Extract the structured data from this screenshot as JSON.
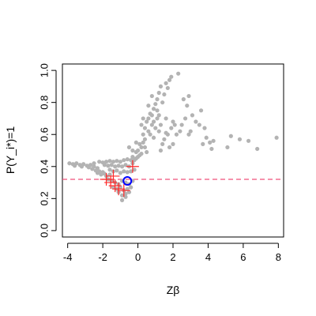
{
  "chart_data": {
    "type": "scatter",
    "title": "",
    "xlabel": "Zβ",
    "ylabel": "P(Y_i*)=1",
    "xlim": [
      -4.3,
      8.3
    ],
    "ylim": [
      -0.04,
      1.04
    ],
    "grid": false,
    "legend": "none",
    "x_ticks": [
      -4,
      -2,
      0,
      2,
      4,
      6,
      8
    ],
    "x_tick_labels": [
      "-4",
      "-2",
      "0",
      "2",
      "4",
      "6",
      "8"
    ],
    "y_ticks": [
      0.0,
      0.2,
      0.4,
      0.6,
      0.8,
      1.0
    ],
    "y_tick_labels": [
      "0.0",
      "0.2",
      "0.4",
      "0.6",
      "0.8",
      "1.0"
    ],
    "reference_line": {
      "y": 0.32,
      "style": "dashed",
      "color": "#f0507a"
    },
    "series": [
      {
        "marker": "filled-circle",
        "color": "#b3b3b3",
        "points": [
          [
            -3.9,
            0.42
          ],
          [
            -3.7,
            0.415
          ],
          [
            -3.5,
            0.42
          ],
          [
            -3.3,
            0.41
          ],
          [
            -3.1,
            0.415
          ],
          [
            -2.9,
            0.405
          ],
          [
            -2.7,
            0.41
          ],
          [
            -3.6,
            0.405
          ],
          [
            -3.2,
            0.4
          ],
          [
            -2.8,
            0.395
          ],
          [
            -2.5,
            0.4
          ],
          [
            -2.3,
            0.39
          ],
          [
            -2.6,
            0.385
          ],
          [
            -2.4,
            0.375
          ],
          [
            -2.2,
            0.37
          ],
          [
            -2.0,
            0.365
          ],
          [
            -1.9,
            0.355
          ],
          [
            -2.1,
            0.35
          ],
          [
            -2.3,
            0.36
          ],
          [
            -1.8,
            0.34
          ],
          [
            -1.6,
            0.35
          ],
          [
            -2.5,
            0.42
          ],
          [
            -2.2,
            0.43
          ],
          [
            -2.0,
            0.425
          ],
          [
            -1.8,
            0.43
          ],
          [
            -1.6,
            0.435
          ],
          [
            -1.4,
            0.43
          ],
          [
            -1.2,
            0.435
          ],
          [
            -1.0,
            0.43
          ],
          [
            -0.8,
            0.44
          ],
          [
            -0.6,
            0.445
          ],
          [
            -0.4,
            0.44
          ],
          [
            -1.9,
            0.41
          ],
          [
            -1.7,
            0.405
          ],
          [
            -1.5,
            0.41
          ],
          [
            -1.3,
            0.4
          ],
          [
            -1.1,
            0.405
          ],
          [
            -0.9,
            0.4
          ],
          [
            -0.7,
            0.41
          ],
          [
            -0.5,
            0.4
          ],
          [
            -1.6,
            0.38
          ],
          [
            -1.4,
            0.37
          ],
          [
            -1.2,
            0.375
          ],
          [
            -1.0,
            0.36
          ],
          [
            -0.8,
            0.37
          ],
          [
            -0.6,
            0.365
          ],
          [
            -0.4,
            0.37
          ],
          [
            -0.2,
            0.38
          ],
          [
            -1.7,
            0.32
          ],
          [
            -1.5,
            0.31
          ],
          [
            -1.3,
            0.3
          ],
          [
            -1.1,
            0.29
          ],
          [
            -0.9,
            0.31
          ],
          [
            -0.7,
            0.3
          ],
          [
            -0.5,
            0.29
          ],
          [
            -0.3,
            0.31
          ],
          [
            -1.4,
            0.27
          ],
          [
            -1.2,
            0.26
          ],
          [
            -1.0,
            0.27
          ],
          [
            -0.8,
            0.25
          ],
          [
            -0.6,
            0.26
          ],
          [
            -0.4,
            0.27
          ],
          [
            -1.1,
            0.24
          ],
          [
            -0.9,
            0.22
          ],
          [
            -0.7,
            0.23
          ],
          [
            -0.5,
            0.24
          ],
          [
            -0.9,
            0.19
          ],
          [
            -0.7,
            0.21
          ],
          [
            -0.3,
            0.42
          ],
          [
            -0.2,
            0.44
          ],
          [
            -0.1,
            0.45
          ],
          [
            0.0,
            0.46
          ],
          [
            0.1,
            0.47
          ],
          [
            0.2,
            0.48
          ],
          [
            -0.1,
            0.49
          ],
          [
            -0.3,
            0.46
          ],
          [
            0.0,
            0.5
          ],
          [
            0.2,
            0.52
          ],
          [
            0.1,
            0.54
          ],
          [
            -0.1,
            0.55
          ],
          [
            0.3,
            0.55
          ],
          [
            0.4,
            0.57
          ],
          [
            -0.5,
            0.52
          ],
          [
            -0.3,
            0.5
          ],
          [
            0.4,
            0.52
          ],
          [
            0.5,
            0.49
          ],
          [
            0.3,
            0.6
          ],
          [
            0.4,
            0.64
          ],
          [
            0.2,
            0.66
          ],
          [
            0.5,
            0.68
          ],
          [
            0.6,
            0.7
          ],
          [
            0.7,
            0.73
          ],
          [
            0.8,
            0.72
          ],
          [
            0.9,
            0.76
          ],
          [
            1.0,
            0.79
          ],
          [
            1.1,
            0.82
          ],
          [
            0.8,
            0.84
          ],
          [
            1.2,
            0.86
          ],
          [
            1.3,
            0.9
          ],
          [
            1.6,
            0.92
          ],
          [
            1.8,
            0.94
          ],
          [
            1.9,
            0.96
          ],
          [
            1.7,
            0.89
          ],
          [
            1.5,
            0.85
          ],
          [
            1.4,
            0.8
          ],
          [
            1.1,
            0.75
          ],
          [
            0.6,
            0.62
          ],
          [
            0.3,
            0.7
          ],
          [
            0.6,
            0.78
          ],
          [
            0.9,
            0.68
          ],
          [
            1.0,
            0.64
          ],
          [
            1.2,
            0.62
          ],
          [
            1.3,
            0.66
          ],
          [
            1.6,
            0.61
          ],
          [
            1.5,
            0.57
          ],
          [
            1.7,
            0.6
          ],
          [
            1.9,
            0.64
          ],
          [
            2.0,
            0.68
          ],
          [
            2.1,
            0.66
          ],
          [
            1.4,
            0.54
          ],
          [
            1.8,
            0.52
          ],
          [
            1.3,
            0.5
          ],
          [
            2.2,
            0.6
          ],
          [
            2.4,
            0.62
          ],
          [
            2.3,
            0.98
          ],
          [
            2.6,
            0.82
          ],
          [
            2.8,
            0.78
          ],
          [
            2.9,
            0.84
          ],
          [
            3.1,
            0.72
          ],
          [
            3.3,
            0.68
          ],
          [
            3.5,
            0.66
          ],
          [
            3.6,
            0.75
          ],
          [
            2.7,
            0.7
          ],
          [
            2.5,
            0.66
          ],
          [
            3.0,
            0.62
          ],
          [
            3.8,
            0.64
          ],
          [
            3.9,
            0.58
          ],
          [
            4.1,
            0.55
          ],
          [
            3.7,
            0.54
          ],
          [
            4.3,
            0.56
          ],
          [
            4.2,
            0.51
          ],
          [
            1.1,
            0.7
          ],
          [
            0.7,
            0.6
          ],
          [
            1.2,
            0.72
          ],
          [
            0.8,
            0.66
          ],
          [
            5.3,
            0.59
          ],
          [
            5.8,
            0.57
          ],
          [
            6.3,
            0.56
          ],
          [
            6.8,
            0.51
          ],
          [
            7.9,
            0.58
          ],
          [
            5.1,
            0.52
          ],
          [
            2.9,
            0.6
          ],
          [
            2.0,
            0.54
          ],
          [
            1.6,
            0.7
          ],
          [
            0.9,
            0.58
          ]
        ]
      },
      {
        "marker": "plus",
        "color": "#ff2a2a",
        "points": [
          [
            -1.8,
            0.32
          ],
          [
            -1.55,
            0.3
          ],
          [
            -1.4,
            0.34
          ],
          [
            -1.1,
            0.26
          ],
          [
            -0.8,
            0.25
          ],
          [
            -1.3,
            0.28
          ],
          [
            -0.3,
            0.4
          ]
        ]
      },
      {
        "marker": "open-circle",
        "color": "#0000ff",
        "points": [
          [
            -0.6,
            0.31
          ]
        ]
      }
    ]
  }
}
